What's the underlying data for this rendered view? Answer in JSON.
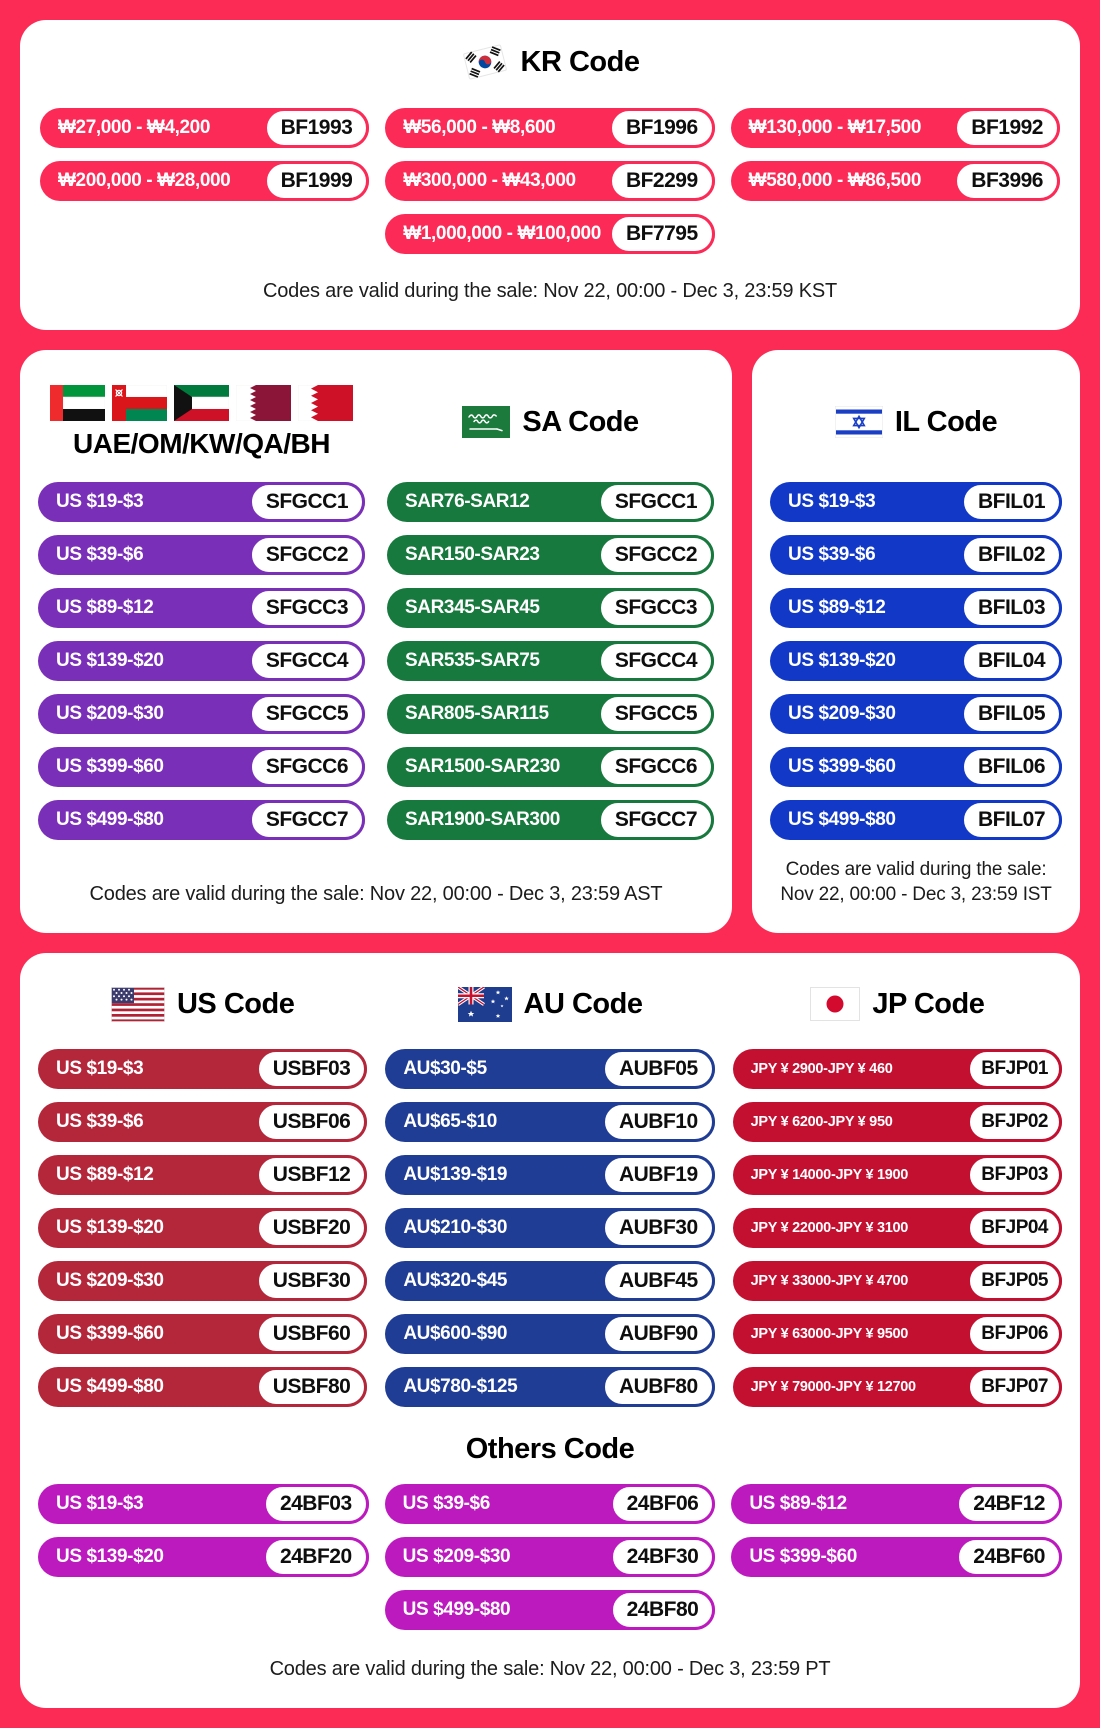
{
  "colors": {
    "background": "#FC2B55",
    "kr_pill": "#FB2A56",
    "gcc_pill": "#7A2FB8",
    "sa_pill": "#17793D",
    "il_pill": "#1138C6",
    "us_pill": "#B4273A",
    "au_pill": "#203D96",
    "jp_pill": "#C31031",
    "others_pill": "#BC19BE"
  },
  "sections": {
    "kr": {
      "title": "KR Code",
      "items": [
        {
          "range": "₩27,000 - ₩4,200",
          "code": "BF1993"
        },
        {
          "range": "₩56,000 - ₩8,600",
          "code": "BF1996"
        },
        {
          "range": "₩130,000 - ₩17,500",
          "code": "BF1992"
        },
        {
          "range": "₩200,000 - ₩28,000",
          "code": "BF1999"
        },
        {
          "range": "₩300,000 - ₩43,000",
          "code": "BF2299"
        },
        {
          "range": "₩580,000 - ₩86,500",
          "code": "BF3996"
        },
        {
          "range": "₩1,000,000 - ₩100,000",
          "code": "BF7795"
        }
      ],
      "validity": "Codes are valid during the sale: Nov 22, 00:00 - Dec 3, 23:59 KST"
    },
    "gcc": {
      "title": "UAE/OM/KW/QA/BH",
      "items": [
        {
          "range": "US $19-$3",
          "code": "SFGCC1"
        },
        {
          "range": "US $39-$6",
          "code": "SFGCC2"
        },
        {
          "range": "US $89-$12",
          "code": "SFGCC3"
        },
        {
          "range": "US $139-$20",
          "code": "SFGCC4"
        },
        {
          "range": "US $209-$30",
          "code": "SFGCC5"
        },
        {
          "range": "US $399-$60",
          "code": "SFGCC6"
        },
        {
          "range": "US $499-$80",
          "code": "SFGCC7"
        }
      ]
    },
    "sa": {
      "title": "SA Code",
      "items": [
        {
          "range": "SAR76-SAR12",
          "code": "SFGCC1"
        },
        {
          "range": "SAR150-SAR23",
          "code": "SFGCC2"
        },
        {
          "range": "SAR345-SAR45",
          "code": "SFGCC3"
        },
        {
          "range": "SAR535-SAR75",
          "code": "SFGCC4"
        },
        {
          "range": "SAR805-SAR115",
          "code": "SFGCC5"
        },
        {
          "range": "SAR1500-SAR230",
          "code": "SFGCC6"
        },
        {
          "range": "SAR1900-SAR300",
          "code": "SFGCC7"
        }
      ]
    },
    "gcc_sa_validity": "Codes are valid during the sale: Nov 22, 00:00 - Dec 3, 23:59 AST",
    "il": {
      "title": "IL Code",
      "items": [
        {
          "range": "US $19-$3",
          "code": "BFIL01"
        },
        {
          "range": "US $39-$6",
          "code": "BFIL02"
        },
        {
          "range": "US $89-$12",
          "code": "BFIL03"
        },
        {
          "range": "US $139-$20",
          "code": "BFIL04"
        },
        {
          "range": "US $209-$30",
          "code": "BFIL05"
        },
        {
          "range": "US $399-$60",
          "code": "BFIL06"
        },
        {
          "range": "US $499-$80",
          "code": "BFIL07"
        }
      ],
      "validity_line1": "Codes are valid during the sale:",
      "validity_line2": "Nov 22, 00:00 - Dec 3, 23:59 IST"
    },
    "us": {
      "title": "US Code",
      "items": [
        {
          "range": "US $19-$3",
          "code": "USBF03"
        },
        {
          "range": "US $39-$6",
          "code": "USBF06"
        },
        {
          "range": "US $89-$12",
          "code": "USBF12"
        },
        {
          "range": "US $139-$20",
          "code": "USBF20"
        },
        {
          "range": "US $209-$30",
          "code": "USBF30"
        },
        {
          "range": "US $399-$60",
          "code": "USBF60"
        },
        {
          "range": "US $499-$80",
          "code": "USBF80"
        }
      ]
    },
    "au": {
      "title": "AU Code",
      "items": [
        {
          "range": "AU$30-$5",
          "code": "AUBF05"
        },
        {
          "range": "AU$65-$10",
          "code": "AUBF10"
        },
        {
          "range": "AU$139-$19",
          "code": "AUBF19"
        },
        {
          "range": "AU$210-$30",
          "code": "AUBF30"
        },
        {
          "range": "AU$320-$45",
          "code": "AUBF45"
        },
        {
          "range": "AU$600-$90",
          "code": "AUBF90"
        },
        {
          "range": "AU$780-$125",
          "code": "AUBF80"
        }
      ]
    },
    "jp": {
      "title": "JP Code",
      "items": [
        {
          "range": "JPY ¥ 2900-JPY ¥ 460",
          "code": "BFJP01"
        },
        {
          "range": "JPY ¥ 6200-JPY ¥ 950",
          "code": "BFJP02"
        },
        {
          "range": "JPY ¥ 14000-JPY ¥ 1900",
          "code": "BFJP03"
        },
        {
          "range": "JPY ¥ 22000-JPY ¥ 3100",
          "code": "BFJP04"
        },
        {
          "range": "JPY ¥ 33000-JPY ¥ 4700",
          "code": "BFJP05"
        },
        {
          "range": "JPY ¥ 63000-JPY ¥ 9500",
          "code": "BFJP06"
        },
        {
          "range": "JPY ¥ 79000-JPY ¥ 12700",
          "code": "BFJP07"
        }
      ]
    },
    "others": {
      "title": "Others Code",
      "items": [
        {
          "range": "US $19-$3",
          "code": "24BF03"
        },
        {
          "range": "US $39-$6",
          "code": "24BF06"
        },
        {
          "range": "US $89-$12",
          "code": "24BF12"
        },
        {
          "range": "US $139-$20",
          "code": "24BF20"
        },
        {
          "range": "US $209-$30",
          "code": "24BF30"
        },
        {
          "range": "US $399-$60",
          "code": "24BF60"
        },
        {
          "range": "US $499-$80",
          "code": "24BF80"
        }
      ]
    },
    "bottom_validity": "Codes are valid during the sale: Nov 22, 00:00 - Dec 3, 23:59 PT"
  }
}
